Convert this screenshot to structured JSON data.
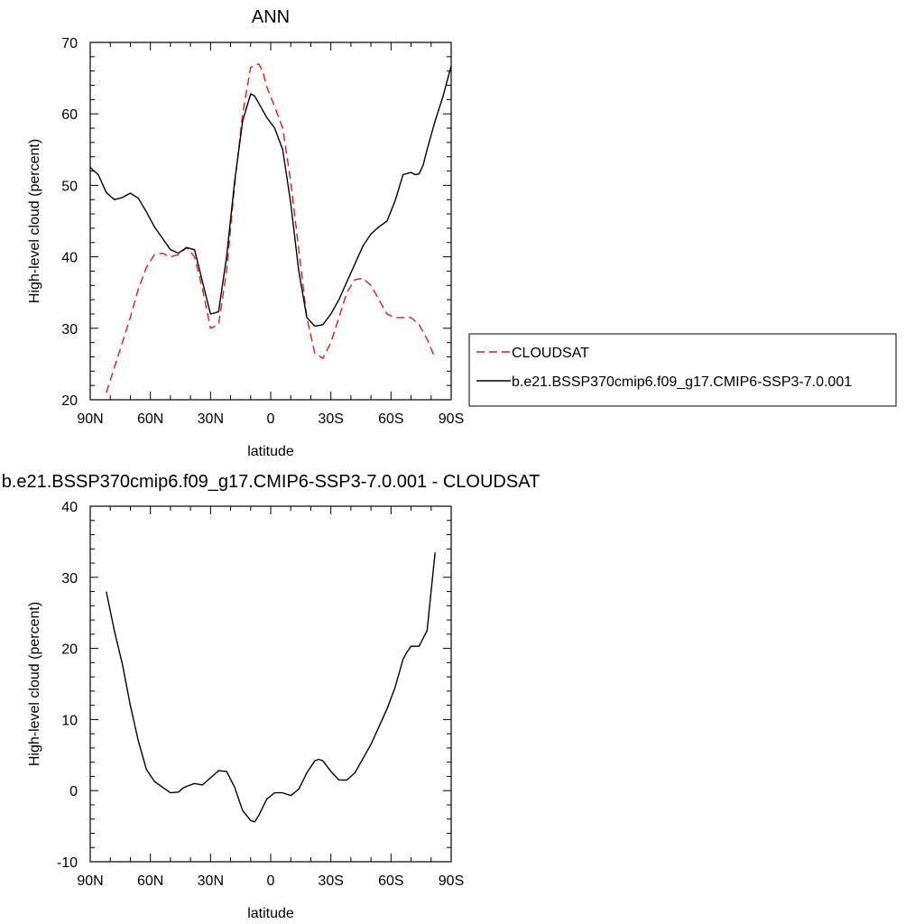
{
  "chart_data": [
    {
      "type": "line",
      "title": "ANN",
      "xlabel": "latitude",
      "ylabel": "High-level cloud (percent)",
      "xlim": [
        90,
        -90
      ],
      "ylim": [
        20,
        70
      ],
      "x_tick_values": [
        90,
        60,
        30,
        0,
        -30,
        -60,
        -90
      ],
      "x_tick_labels": [
        "90N",
        "60N",
        "30N",
        "0",
        "30S",
        "60S",
        "90S"
      ],
      "y_tick_labels": [
        "20",
        "30",
        "40",
        "50",
        "60",
        "70"
      ],
      "y_tick_values": [
        20,
        30,
        40,
        50,
        60,
        70
      ],
      "legend_position": "right",
      "series": [
        {
          "name": "CLOUDSAT",
          "color": "#e31a1c",
          "dash": "dashed",
          "x": [
            82,
            78,
            74,
            70,
            66,
            62,
            58,
            54,
            50,
            46,
            42,
            38,
            34,
            30,
            26,
            22,
            18,
            14,
            10,
            6,
            4,
            2,
            -2,
            -6,
            -10,
            -14,
            -18,
            -22,
            -26,
            -30,
            -34,
            -38,
            -42,
            -46,
            -50,
            -54,
            -58,
            -62,
            -66,
            -70,
            -74,
            -78,
            -82
          ],
          "y": [
            21,
            24.5,
            28,
            31.5,
            35.5,
            38.5,
            40.3,
            40.5,
            40,
            40.3,
            41.3,
            40,
            35.5,
            30,
            30.5,
            38,
            50,
            60,
            66.5,
            67,
            66,
            63.8,
            61,
            58,
            50.5,
            41,
            31.5,
            26.5,
            25.8,
            28,
            31.5,
            35,
            36.8,
            37,
            36,
            34,
            32,
            31.5,
            31.5,
            31.5,
            30.5,
            28.5,
            25.8
          ]
        },
        {
          "name": "b.e21.BSSP370cmip6.f09_g17.CMIP6-SSP3-7.0.001",
          "color": "#000000",
          "dash": "solid",
          "x": [
            90,
            86,
            82,
            78,
            74,
            70,
            66,
            62,
            58,
            54,
            50,
            46,
            42,
            38,
            34,
            30,
            26,
            22,
            18,
            14,
            10,
            8,
            6,
            2,
            -2,
            -6,
            -10,
            -14,
            -18,
            -22,
            -26,
            -30,
            -34,
            -38,
            -42,
            -46,
            -50,
            -54,
            -58,
            -62,
            -66,
            -70,
            -72,
            -74,
            -76,
            -78,
            -82,
            -86,
            -90
          ],
          "y": [
            52.5,
            51.5,
            49,
            48,
            48.3,
            48.9,
            48.2,
            46.3,
            44.2,
            42.6,
            41,
            40.5,
            41.3,
            41,
            36.5,
            32,
            32.3,
            40,
            50.5,
            59,
            62.8,
            62.5,
            61.5,
            59.5,
            58,
            55,
            47.5,
            38,
            31.5,
            30.3,
            30.5,
            32,
            34,
            36.5,
            39,
            41.5,
            43.2,
            44.2,
            45,
            47.8,
            51.5,
            51.8,
            51.5,
            51.6,
            52.8,
            55,
            59,
            62.5,
            66.7
          ]
        }
      ]
    },
    {
      "type": "line",
      "title": "b.e21.BSSP370cmip6.f09_g17.CMIP6-SSP3-7.0.001 - CLOUDSAT",
      "xlabel": "latitude",
      "ylabel": "High-level cloud (percent)",
      "xlim": [
        90,
        -90
      ],
      "ylim": [
        -10,
        40
      ],
      "x_tick_values": [
        90,
        60,
        30,
        0,
        -30,
        -60,
        -90
      ],
      "x_tick_labels": [
        "90N",
        "60N",
        "30N",
        "0",
        "30S",
        "60S",
        "90S"
      ],
      "y_tick_labels": [
        "-10",
        "0",
        "10",
        "20",
        "30",
        "40"
      ],
      "y_tick_values": [
        -10,
        0,
        10,
        20,
        30,
        40
      ],
      "series": [
        {
          "color": "#000000",
          "dash": "solid",
          "x": [
            82,
            78,
            74,
            70,
            66,
            62,
            58,
            54,
            50,
            46,
            44,
            42,
            38,
            34,
            30,
            26,
            22,
            18,
            14,
            10,
            8,
            6,
            2,
            -2,
            -6,
            -10,
            -14,
            -18,
            -22,
            -24,
            -26,
            -30,
            -34,
            -38,
            -42,
            -46,
            -50,
            -54,
            -58,
            -62,
            -66,
            -68,
            -70,
            -74,
            -78,
            -82
          ],
          "y": [
            28,
            22.5,
            17.8,
            12,
            7,
            3,
            1.3,
            0.5,
            -0.3,
            -0.2,
            0.3,
            0.6,
            1,
            0.8,
            1.8,
            2.8,
            2.7,
            0.5,
            -2.8,
            -4.2,
            -4.4,
            -3.5,
            -1.2,
            -0.3,
            -0.3,
            -0.7,
            0.2,
            2.5,
            4.2,
            4.4,
            4.2,
            2.7,
            1.5,
            1.5,
            2.5,
            4.5,
            6.5,
            9,
            11.5,
            14.5,
            18.5,
            19.5,
            20.3,
            20.3,
            22.5,
            33.5
          ]
        }
      ]
    }
  ]
}
